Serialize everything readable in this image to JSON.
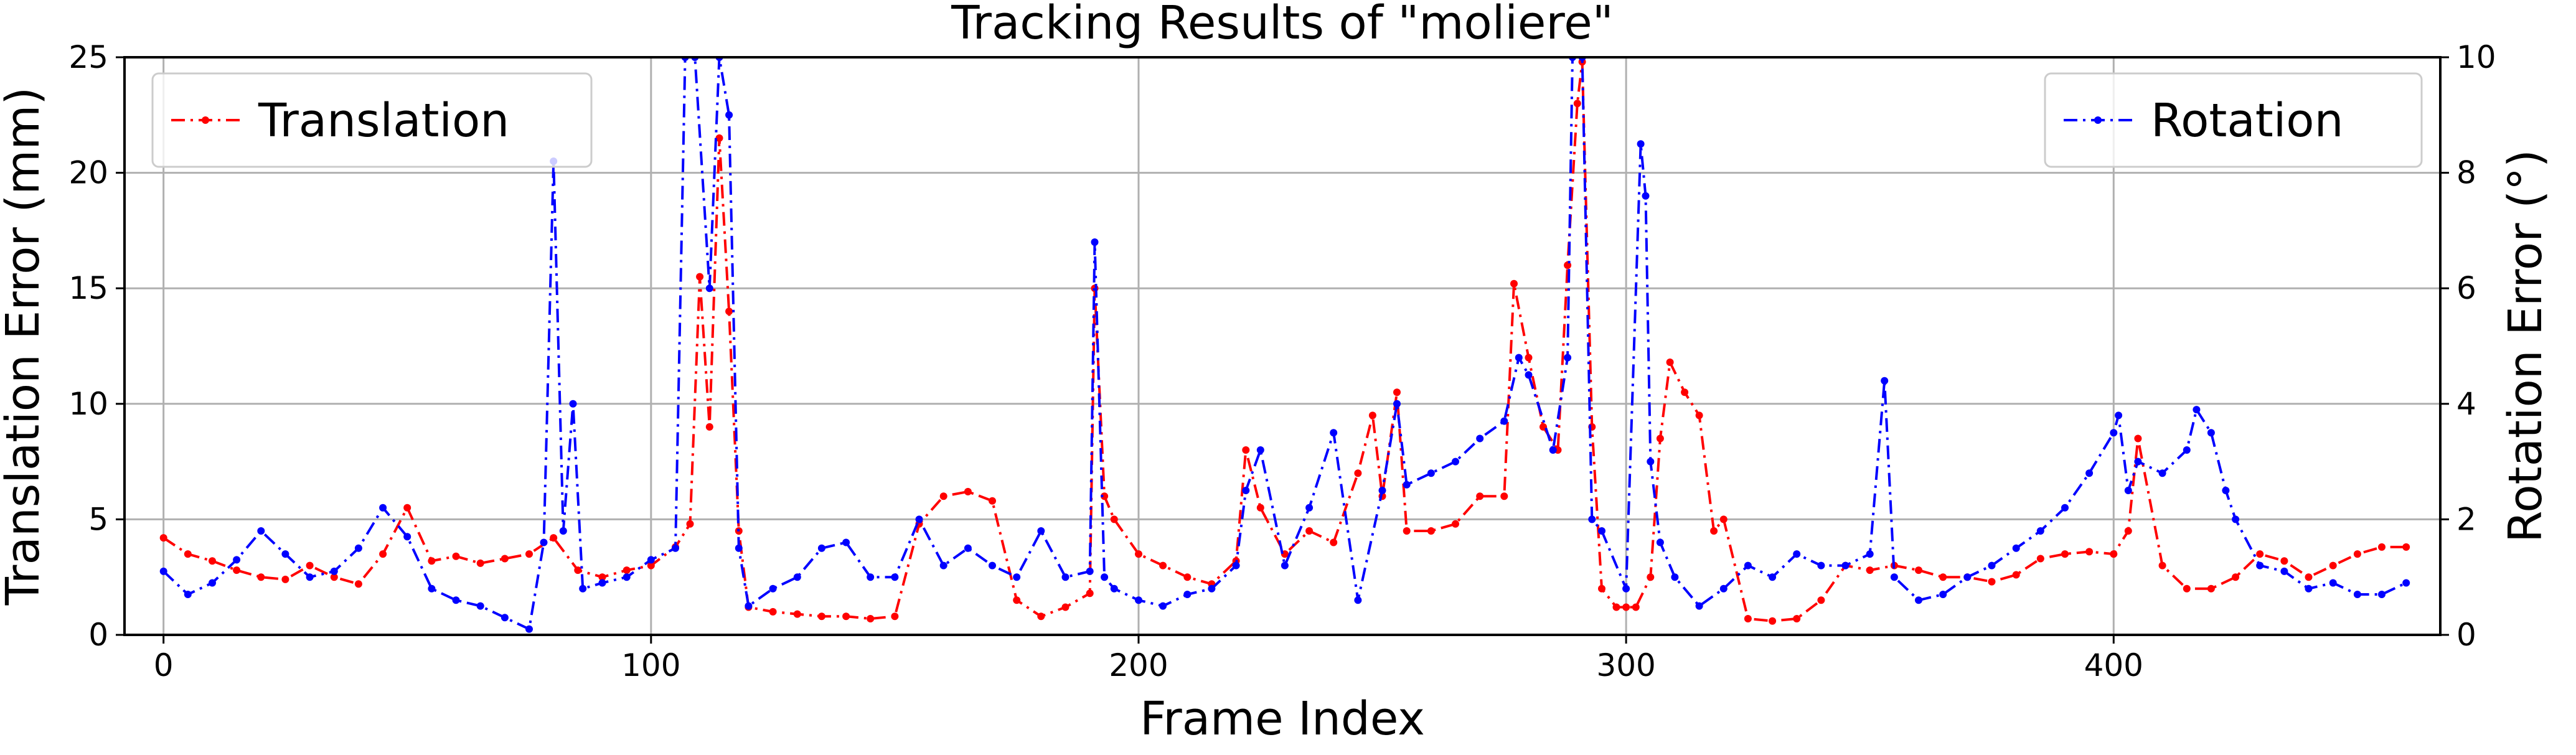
{
  "chart_data": {
    "type": "line",
    "title": "Tracking Results of \"moliere\"",
    "xlabel": "Frame Index",
    "ylabel": "Translation Error (mm)",
    "ylabel_right": "Rotation Error (°)",
    "xlim": [
      -8,
      467
    ],
    "ylim": [
      0,
      25
    ],
    "ylim_right": [
      0,
      10
    ],
    "xticks": [
      0,
      100,
      200,
      300,
      400
    ],
    "xtick_labels": [
      "0",
      "100",
      "200",
      "300",
      "400"
    ],
    "yticks": [
      0,
      5,
      10,
      15,
      20,
      25
    ],
    "ytick_labels": [
      "0",
      "5",
      "10",
      "15",
      "20",
      "25"
    ],
    "yticks_right": [
      0,
      2,
      4,
      6,
      8,
      10
    ],
    "ytick_labels_right": [
      "0",
      "2",
      "4",
      "6",
      "8",
      "10"
    ],
    "grid": true,
    "legend": [
      {
        "label": "Translation",
        "placement": "upper-left"
      },
      {
        "label": "Rotation",
        "placement": "upper-right"
      }
    ],
    "series": [
      {
        "name": "Translation",
        "axis": "left",
        "color": "#ff0000",
        "linestyle": "dashdot",
        "marker": "dot",
        "x": [
          0,
          5,
          10,
          15,
          20,
          25,
          30,
          35,
          40,
          45,
          50,
          55,
          60,
          65,
          70,
          75,
          80,
          85,
          90,
          95,
          100,
          105,
          108,
          110,
          112,
          114,
          116,
          118,
          120,
          125,
          130,
          135,
          140,
          145,
          150,
          155,
          160,
          165,
          170,
          175,
          180,
          185,
          190,
          191,
          193,
          195,
          200,
          205,
          210,
          215,
          220,
          222,
          225,
          230,
          235,
          240,
          245,
          248,
          250,
          253,
          255,
          260,
          265,
          270,
          275,
          277,
          280,
          283,
          286,
          288,
          290,
          291,
          293,
          295,
          298,
          300,
          302,
          305,
          307,
          309,
          312,
          315,
          318,
          320,
          325,
          330,
          335,
          340,
          345,
          350,
          355,
          360,
          365,
          370,
          375,
          380,
          385,
          390,
          395,
          400,
          403,
          405,
          410,
          415,
          420,
          425,
          430,
          435,
          440,
          445,
          450,
          455,
          460
        ],
        "values": [
          4.2,
          3.5,
          3.2,
          2.8,
          2.5,
          2.4,
          3.0,
          2.5,
          2.2,
          3.5,
          5.5,
          3.2,
          3.4,
          3.1,
          3.3,
          3.5,
          4.2,
          2.8,
          2.5,
          2.8,
          3.0,
          3.8,
          4.8,
          15.5,
          9.0,
          21.5,
          14.0,
          4.5,
          1.2,
          1.0,
          0.9,
          0.8,
          0.8,
          0.7,
          0.8,
          4.8,
          6.0,
          6.2,
          5.8,
          1.5,
          0.8,
          1.2,
          1.8,
          15.0,
          6.0,
          5.0,
          3.5,
          3.0,
          2.5,
          2.2,
          3.2,
          8.0,
          5.5,
          3.5,
          4.5,
          4.0,
          7.0,
          9.5,
          6.0,
          10.5,
          4.5,
          4.5,
          4.8,
          6.0,
          6.0,
          15.2,
          12.0,
          9.0,
          8.0,
          16.0,
          23.0,
          24.8,
          9.0,
          2.0,
          1.2,
          1.2,
          1.2,
          2.5,
          8.5,
          11.8,
          10.5,
          9.5,
          4.5,
          5.0,
          0.7,
          0.6,
          0.7,
          1.5,
          3.0,
          2.8,
          3.0,
          2.8,
          2.5,
          2.5,
          2.3,
          2.6,
          3.3,
          3.5,
          3.6,
          3.5,
          4.5,
          8.5,
          3.0,
          2.0,
          2.0,
          2.5,
          3.5,
          3.2,
          2.5,
          3.0,
          3.5,
          3.8,
          3.8
        ]
      },
      {
        "name": "Rotation",
        "axis": "right",
        "color": "#0000ff",
        "linestyle": "dashdot",
        "marker": "dot",
        "x": [
          0,
          5,
          10,
          15,
          20,
          25,
          30,
          35,
          40,
          45,
          50,
          55,
          60,
          65,
          70,
          75,
          78,
          80,
          82,
          84,
          86,
          90,
          95,
          100,
          105,
          107,
          109,
          112,
          114,
          116,
          118,
          120,
          125,
          130,
          135,
          140,
          145,
          150,
          155,
          160,
          165,
          170,
          175,
          180,
          185,
          190,
          191,
          193,
          195,
          200,
          205,
          210,
          215,
          220,
          222,
          225,
          230,
          235,
          240,
          245,
          250,
          253,
          255,
          260,
          265,
          270,
          275,
          278,
          280,
          285,
          288,
          289,
          291,
          293,
          295,
          300,
          303,
          304,
          305,
          307,
          310,
          315,
          320,
          325,
          330,
          335,
          340,
          345,
          350,
          353,
          355,
          360,
          365,
          370,
          375,
          380,
          385,
          390,
          395,
          400,
          401,
          403,
          405,
          410,
          415,
          417,
          420,
          423,
          425,
          430,
          435,
          440,
          445,
          450,
          455,
          460
        ],
        "values": [
          1.1,
          0.7,
          0.9,
          1.3,
          1.8,
          1.4,
          1.0,
          1.1,
          1.5,
          2.2,
          1.7,
          0.8,
          0.6,
          0.5,
          0.3,
          0.1,
          1.6,
          8.2,
          1.8,
          4.0,
          0.8,
          0.9,
          1.0,
          1.3,
          1.5,
          10.0,
          10.0,
          6.0,
          10.0,
          9.0,
          1.5,
          0.5,
          0.8,
          1.0,
          1.5,
          1.6,
          1.0,
          1.0,
          2.0,
          1.2,
          1.5,
          1.2,
          1.0,
          1.8,
          1.0,
          1.1,
          6.8,
          1.0,
          0.8,
          0.6,
          0.5,
          0.7,
          0.8,
          1.2,
          2.5,
          3.2,
          1.2,
          2.2,
          3.5,
          0.6,
          2.5,
          4.0,
          2.6,
          2.8,
          3.0,
          3.4,
          3.7,
          4.8,
          4.5,
          3.2,
          4.8,
          10.0,
          10.0,
          2.0,
          1.8,
          0.8,
          8.5,
          7.6,
          3.0,
          1.6,
          1.0,
          0.5,
          0.8,
          1.2,
          1.0,
          1.4,
          1.2,
          1.2,
          1.4,
          4.4,
          1.0,
          0.6,
          0.7,
          1.0,
          1.2,
          1.5,
          1.8,
          2.2,
          2.8,
          3.5,
          3.8,
          2.5,
          3.0,
          2.8,
          3.2,
          3.9,
          3.5,
          2.5,
          2.0,
          1.2,
          1.1,
          0.8,
          0.9,
          0.7,
          0.7,
          0.9
        ]
      }
    ]
  }
}
